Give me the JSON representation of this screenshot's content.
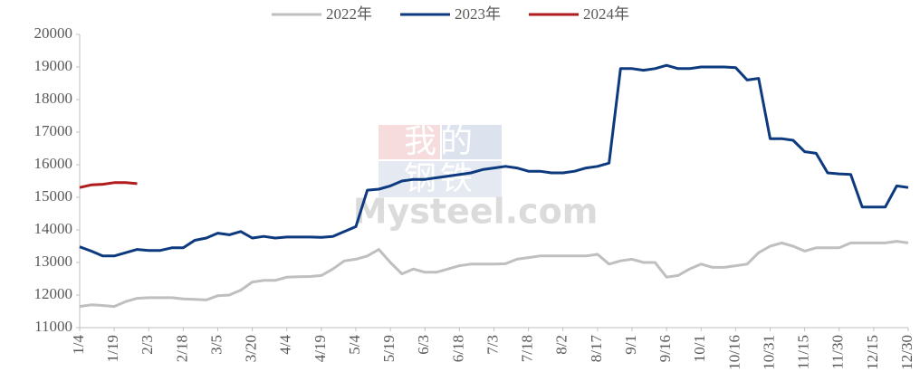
{
  "chart_data": {
    "type": "line",
    "watermark": [
      "我的",
      "钢铁",
      "Mysteel.com"
    ],
    "categories": [
      "1/4",
      null,
      null,
      "1/19",
      null,
      null,
      "2/3",
      null,
      null,
      "2/18",
      null,
      null,
      "3/5",
      null,
      null,
      "3/20",
      null,
      null,
      "4/4",
      null,
      null,
      "4/19",
      null,
      null,
      "5/4",
      null,
      null,
      "5/19",
      null,
      null,
      "6/3",
      null,
      null,
      "6/18",
      null,
      null,
      "7/3",
      null,
      null,
      "7/18",
      null,
      null,
      "8/2",
      null,
      null,
      "8/17",
      null,
      null,
      "9/1",
      null,
      null,
      "9/16",
      null,
      null,
      "10/1",
      null,
      null,
      "10/16",
      null,
      null,
      "10/31",
      null,
      null,
      "11/15",
      null,
      null,
      "11/30",
      null,
      null,
      "12/15",
      null,
      null,
      "12/30"
    ],
    "series": [
      {
        "name": "2022年",
        "color": "#bfbfbf",
        "values": [
          11650,
          11700,
          11680,
          11650,
          11800,
          11900,
          11920,
          11920,
          11920,
          11880,
          11870,
          11850,
          11980,
          12000,
          12150,
          12400,
          12450,
          12450,
          12550,
          12560,
          12570,
          12600,
          12800,
          13050,
          13100,
          13200,
          13400,
          13000,
          12650,
          12800,
          12700,
          12700,
          12800,
          12900,
          12950,
          12950,
          12950,
          12960,
          13100,
          13150,
          13200,
          13200,
          13200,
          13200,
          13200,
          13250,
          12950,
          13050,
          13100,
          13000,
          13000,
          12550,
          12600,
          12800,
          12950,
          12850,
          12850,
          12900,
          12950,
          13300,
          13500,
          13600,
          13500,
          13350,
          13450,
          13450,
          13450,
          13600,
          13600,
          13600,
          13600,
          13650,
          13600
        ]
      },
      {
        "name": "2023年",
        "color": "#0d3a7e",
        "values": [
          13480,
          13350,
          13200,
          13200,
          13300,
          13400,
          13370,
          13370,
          13450,
          13450,
          13680,
          13750,
          13900,
          13850,
          13950,
          13750,
          13800,
          13750,
          13780,
          13780,
          13780,
          13770,
          13800,
          13950,
          14100,
          15220,
          15250,
          15350,
          15500,
          15550,
          15550,
          15600,
          15650,
          15700,
          15750,
          15850,
          15900,
          15950,
          15900,
          15800,
          15800,
          15750,
          15750,
          15800,
          15900,
          15950,
          16050,
          18950,
          18950,
          18900,
          18950,
          19050,
          18950,
          18950,
          19000,
          19000,
          19000,
          18980,
          18600,
          18650,
          16800,
          16800,
          16750,
          16400,
          16350,
          15750,
          15720,
          15700,
          14700,
          14700,
          14700,
          15350,
          15300
        ]
      },
      {
        "name": "2024年",
        "color": "#b01c1c",
        "values": [
          15300,
          15380,
          15400,
          15450,
          15450,
          15420,
          null,
          null,
          null,
          null,
          null,
          null,
          null,
          null,
          null,
          null,
          null,
          null,
          null,
          null,
          null,
          null,
          null,
          null,
          null,
          null,
          null,
          null,
          null,
          null,
          null,
          null,
          null,
          null,
          null,
          null,
          null,
          null,
          null,
          null,
          null,
          null,
          null,
          null,
          null,
          null,
          null,
          null,
          null,
          null,
          null,
          null,
          null,
          null,
          null,
          null,
          null,
          null,
          null,
          null,
          null,
          null,
          null,
          null,
          null,
          null,
          null,
          null,
          null,
          null,
          null,
          null,
          null
        ]
      }
    ],
    "ylim": [
      11000,
      20000
    ],
    "yticks": [
      11000,
      12000,
      13000,
      14000,
      15000,
      16000,
      17000,
      18000,
      19000,
      20000
    ],
    "legend": "top"
  }
}
